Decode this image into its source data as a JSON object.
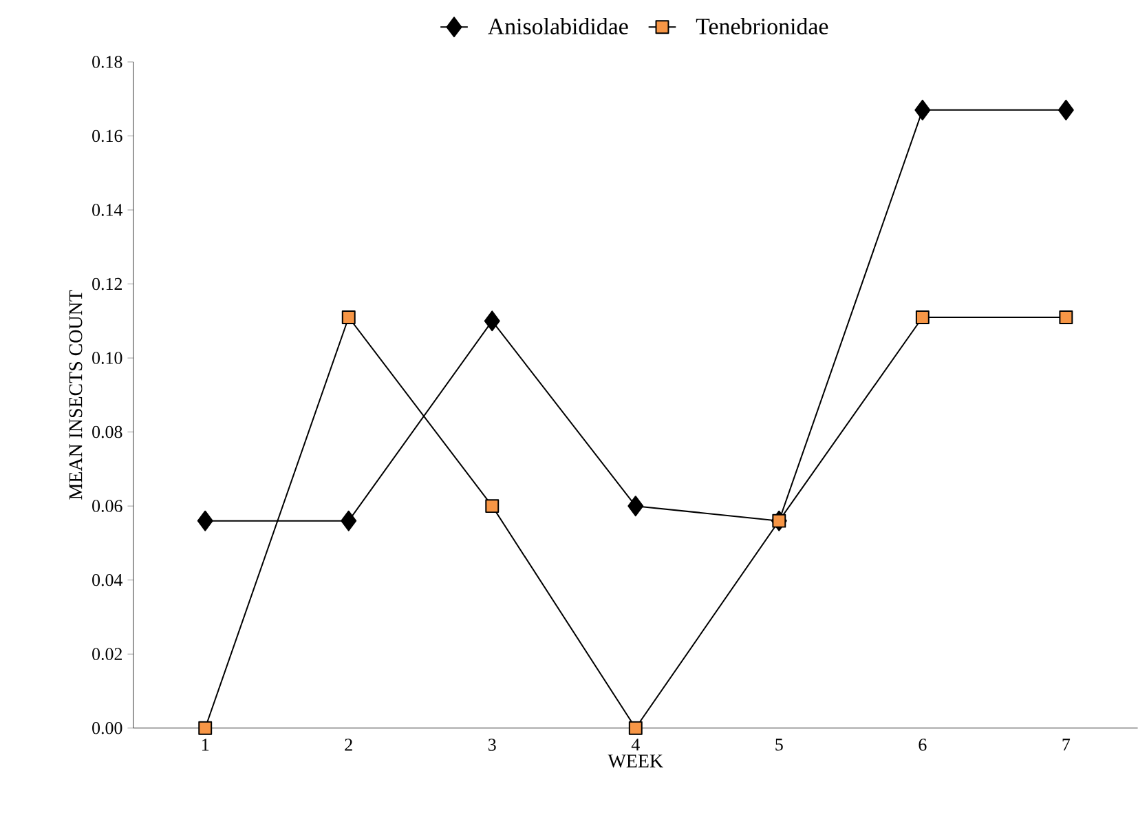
{
  "chart_data": {
    "type": "line",
    "xlabel": "WEEK",
    "ylabel": "MEAN INSECTS COUNT",
    "categories": [
      "1",
      "2",
      "3",
      "4",
      "5",
      "6",
      "7"
    ],
    "series": [
      {
        "name": "Anisolabididae",
        "color": "#000000",
        "marker": "diamond",
        "values": [
          0.056,
          0.056,
          0.11,
          0.06,
          0.056,
          0.167,
          0.167
        ]
      },
      {
        "name": "Tenebrionidae",
        "color": "#f79646",
        "marker": "square",
        "values": [
          0,
          0.111,
          0.06,
          0,
          0.056,
          0.111,
          0.111
        ]
      }
    ],
    "ylim": [
      0,
      0.18
    ],
    "yticks": [
      {
        "value": 0,
        "label": "0.00"
      },
      {
        "value": 0.02,
        "label": "0.02"
      },
      {
        "value": 0.04,
        "label": "0.04"
      },
      {
        "value": 0.06,
        "label": "0.06"
      },
      {
        "value": 0.08,
        "label": "0.08"
      },
      {
        "value": 0.1,
        "label": "0.10"
      },
      {
        "value": 0.12,
        "label": "0.12"
      },
      {
        "value": 0.14,
        "label": "0.14"
      },
      {
        "value": 0.16,
        "label": "0.16"
      },
      {
        "value": 0.18,
        "label": "0.18"
      }
    ],
    "grid": false,
    "legend": "top",
    "line_style": "solid"
  }
}
